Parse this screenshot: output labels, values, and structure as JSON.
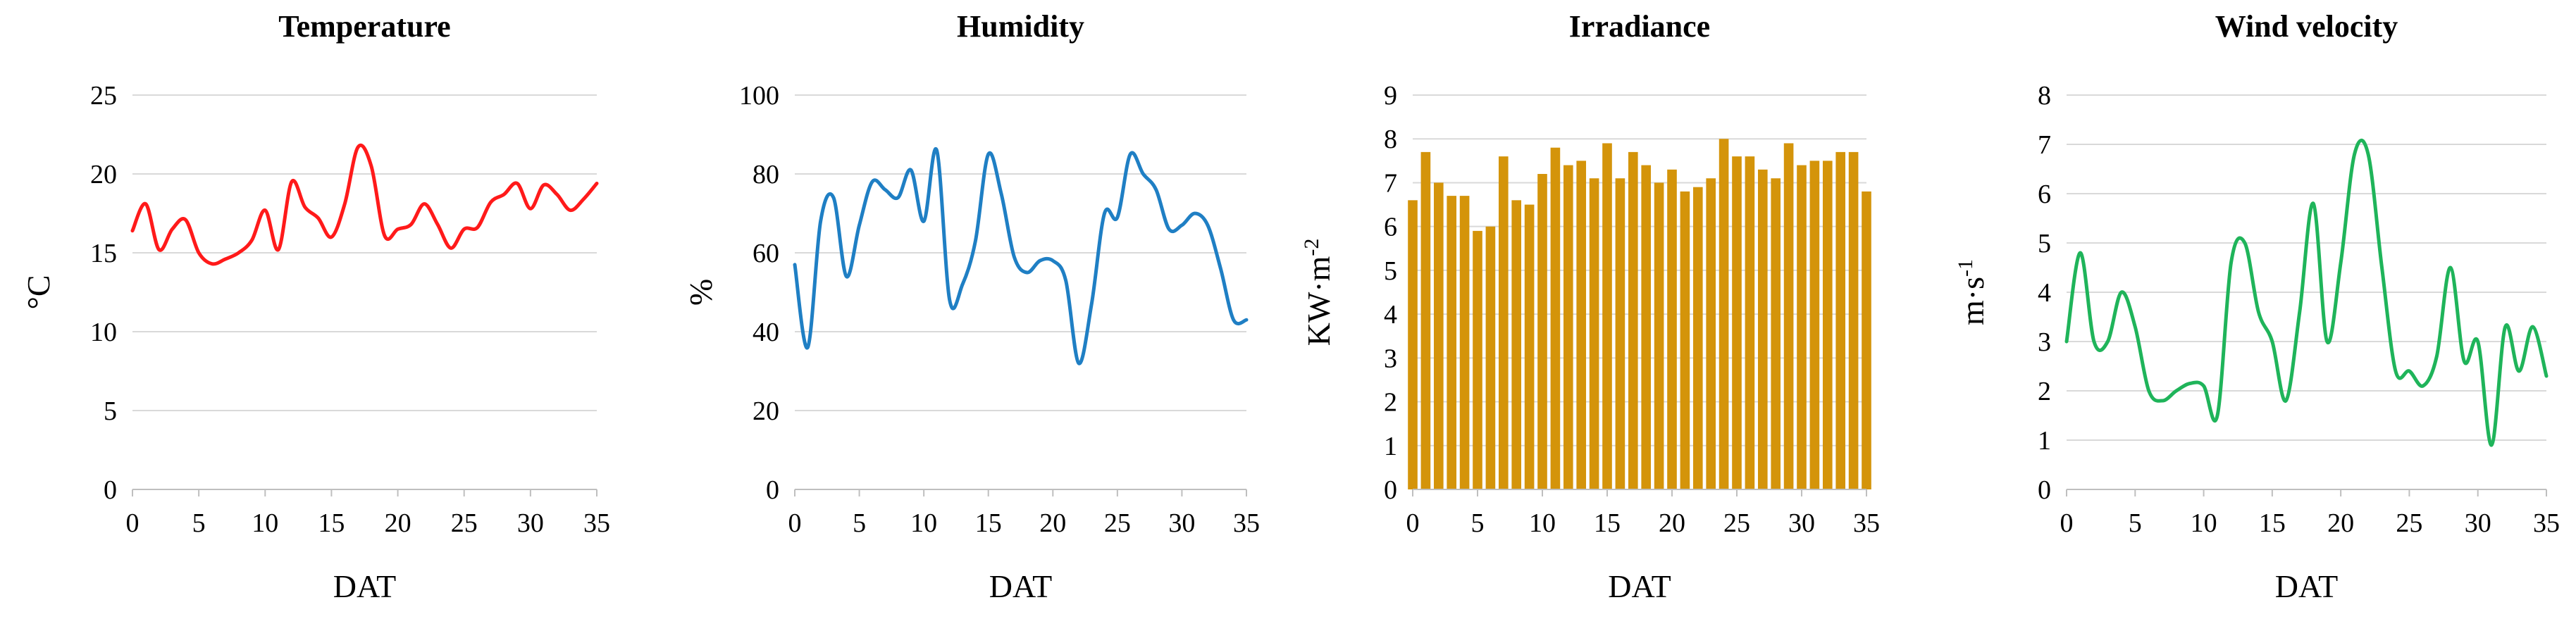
{
  "chart_data": [
    {
      "type": "line",
      "title": "Temperature",
      "xlabel": "DAT",
      "ylabel": "°C",
      "ylabel_sup": "",
      "ylim": [
        0,
        25
      ],
      "yticks": [
        0,
        5,
        10,
        15,
        20,
        25
      ],
      "xlim": [
        0,
        35
      ],
      "xticks": [
        0,
        5,
        10,
        15,
        20,
        25,
        30,
        35
      ],
      "color": "#ff1a1a",
      "series": [
        {
          "name": "Temperature",
          "x": [
            0,
            1,
            2,
            3,
            4,
            5,
            6,
            7,
            8,
            9,
            10,
            11,
            12,
            13,
            14,
            15,
            16,
            17,
            18,
            19,
            20,
            21,
            22,
            23,
            24,
            25,
            26,
            27,
            28,
            29,
            30,
            31,
            32,
            33,
            34,
            35
          ],
          "values": [
            16.4,
            18.1,
            15.2,
            16.5,
            17.1,
            15.0,
            14.3,
            14.6,
            15.0,
            15.8,
            17.7,
            15.2,
            19.5,
            17.9,
            17.2,
            16.0,
            18.1,
            21.7,
            20.5,
            16.1,
            16.5,
            16.8,
            18.1,
            16.8,
            15.3,
            16.5,
            16.6,
            18.2,
            18.7,
            19.4,
            17.8,
            19.3,
            18.7,
            17.7,
            18.4,
            19.4
          ]
        }
      ]
    },
    {
      "type": "line",
      "title": "Humidity",
      "xlabel": "DAT",
      "ylabel": "%",
      "ylabel_sup": "",
      "ylim": [
        0,
        100
      ],
      "yticks": [
        0,
        20,
        40,
        60,
        80,
        100
      ],
      "xlim": [
        0,
        35
      ],
      "xticks": [
        0,
        5,
        10,
        15,
        20,
        25,
        30,
        35
      ],
      "color": "#1f7fc4",
      "series": [
        {
          "name": "Humidity",
          "x": [
            0,
            1,
            2,
            3,
            4,
            5,
            6,
            7,
            8,
            9,
            10,
            11,
            12,
            13,
            14,
            15,
            16,
            17,
            18,
            19,
            20,
            21,
            22,
            23,
            24,
            25,
            26,
            27,
            28,
            29,
            30,
            31,
            32,
            33,
            34,
            35
          ],
          "values": [
            57,
            36,
            68,
            74,
            54,
            67,
            78,
            76,
            74,
            81,
            68,
            86,
            48,
            52,
            63,
            85,
            75,
            59,
            55,
            58,
            58,
            53,
            32,
            47,
            70,
            69,
            85,
            80,
            76,
            66,
            67,
            70,
            67,
            56,
            43,
            43
          ]
        }
      ]
    },
    {
      "type": "bar",
      "title": "Irradiance",
      "xlabel": "DAT",
      "ylabel": "KW·m",
      "ylabel_sup": "-2",
      "ylim": [
        0,
        9
      ],
      "yticks": [
        0,
        1,
        2,
        3,
        4,
        5,
        6,
        7,
        8,
        9
      ],
      "xlim": [
        0,
        35
      ],
      "xticks": [
        0,
        5,
        10,
        15,
        20,
        25,
        30,
        35
      ],
      "color": "#d4940a",
      "series": [
        {
          "name": "Irradiance",
          "x": [
            0,
            1,
            2,
            3,
            4,
            5,
            6,
            7,
            8,
            9,
            10,
            11,
            12,
            13,
            14,
            15,
            16,
            17,
            18,
            19,
            20,
            21,
            22,
            23,
            24,
            25,
            26,
            27,
            28,
            29,
            30,
            31,
            32,
            33,
            34,
            35
          ],
          "values": [
            6.6,
            7.7,
            7.0,
            6.7,
            6.7,
            5.9,
            6.0,
            7.6,
            6.6,
            6.5,
            7.2,
            7.8,
            7.4,
            7.5,
            7.1,
            7.9,
            7.1,
            7.7,
            7.4,
            7.0,
            7.3,
            6.8,
            6.9,
            7.1,
            8.0,
            7.6,
            7.6,
            7.3,
            7.1,
            7.9,
            7.4,
            7.5,
            7.5,
            7.7,
            7.7,
            6.8
          ]
        }
      ]
    },
    {
      "type": "line",
      "title": "Wind velocity",
      "xlabel": "DAT",
      "ylabel": "m·s",
      "ylabel_sup": "-1",
      "ylim": [
        0,
        8
      ],
      "yticks": [
        0,
        1,
        2,
        3,
        4,
        5,
        6,
        7,
        8
      ],
      "xlim": [
        0,
        35
      ],
      "xticks": [
        0,
        5,
        10,
        15,
        20,
        25,
        30,
        35
      ],
      "color": "#1fb45a",
      "series": [
        {
          "name": "Wind velocity",
          "x": [
            0,
            1,
            2,
            3,
            4,
            5,
            6,
            7,
            8,
            9,
            10,
            11,
            12,
            13,
            14,
            15,
            16,
            17,
            18,
            19,
            20,
            21,
            22,
            23,
            24,
            25,
            26,
            27,
            28,
            29,
            30,
            31,
            32,
            33,
            34,
            35
          ],
          "values": [
            3.0,
            4.8,
            3.0,
            3.0,
            4.0,
            3.3,
            2.0,
            1.8,
            2.0,
            2.15,
            2.1,
            1.5,
            4.6,
            5.0,
            3.6,
            3.0,
            1.8,
            3.6,
            5.8,
            3.0,
            4.6,
            6.8,
            6.8,
            4.5,
            2.4,
            2.4,
            2.1,
            2.7,
            4.5,
            2.6,
            3.0,
            0.9,
            3.3,
            2.4,
            3.3,
            2.3
          ]
        }
      ]
    }
  ]
}
